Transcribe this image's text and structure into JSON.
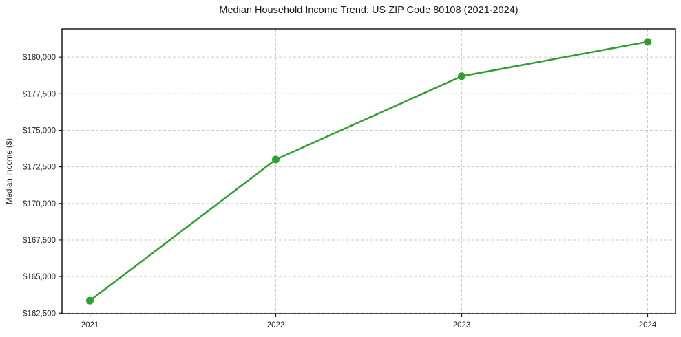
{
  "chart_data": {
    "type": "line",
    "title": "Median Household Income Trend: US ZIP Code 80108 (2021-2024)",
    "xlabel": "",
    "ylabel": "Median Income ($)",
    "x": [
      2021,
      2022,
      2023,
      2024
    ],
    "x_tick_labels": [
      "2021",
      "2022",
      "2023",
      "2024"
    ],
    "values": [
      163350,
      173000,
      178700,
      181050
    ],
    "y_ticks": [
      162500,
      165000,
      167500,
      170000,
      172500,
      175000,
      177500,
      180000
    ],
    "y_tick_labels": [
      "$162,500",
      "$165,000",
      "$167,500",
      "$170,000",
      "$172,500",
      "$175,000",
      "$177,500",
      "$180,000"
    ],
    "xlim": [
      2020.85,
      2024.15
    ],
    "ylim": [
      162465,
      181935
    ],
    "grid": true,
    "grid_style": "dashed",
    "grid_color": "#cccccc",
    "line_color": "#2ca02c",
    "marker": "circle",
    "marker_color": "#2ca02c",
    "legend_position": "none"
  }
}
